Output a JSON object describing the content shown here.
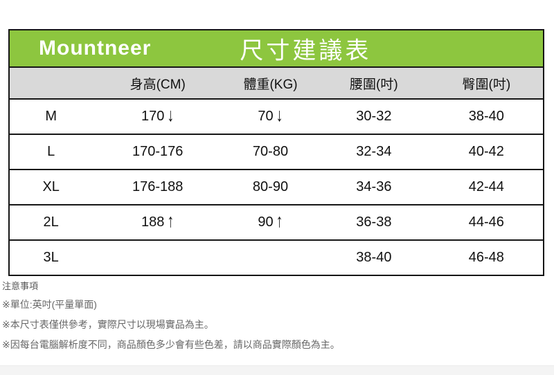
{
  "brand": {
    "logo": "Mountneer",
    "title": "尺寸建議表"
  },
  "table": {
    "columns": [
      "",
      "身高(CM)",
      "體重(KG)",
      "腰圍(吋)",
      "臀圍(吋)"
    ],
    "rows": [
      [
        "M",
        "170 ↓",
        "70 ↓",
        "30-32",
        "38-40"
      ],
      [
        "L",
        "170-176",
        "70-80",
        "32-34",
        "40-42"
      ],
      [
        "XL",
        "176-188",
        "80-90",
        "34-36",
        "42-44"
      ],
      [
        "2L",
        "188 ↑",
        "90 ↑",
        "36-38",
        "44-46"
      ],
      [
        "3L",
        "",
        "",
        "38-40",
        "46-48"
      ]
    ]
  },
  "notes": {
    "title": "注意事項",
    "items": [
      "※單位:英吋(平量單面)",
      "※本尺寸表僅供參考，實際尺寸以現場實品為主。",
      "※因每台電腦解析度不同，商品顏色多少會有些色差，請以商品實際顏色為主。"
    ]
  },
  "colors": {
    "header_green": "#8dc63f",
    "column_header_gray": "#d9d9d9",
    "table_border": "#161616",
    "note_text": "#666666",
    "bottom_strip": "#f4f4f4"
  }
}
